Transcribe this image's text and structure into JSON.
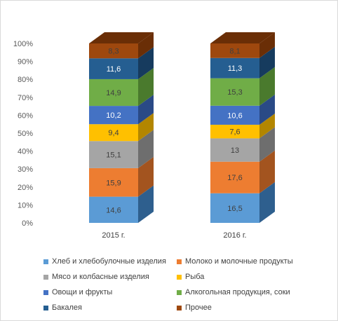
{
  "chart_data": {
    "type": "bar",
    "stacked": true,
    "three_d": true,
    "categories": [
      "2015 г.",
      "2016 г."
    ],
    "series": [
      {
        "name": "Хлеб и хлебобулочные изделия",
        "values": [
          14.6,
          16.5
        ],
        "color": "#5B9BD5",
        "side_color": "#2E5F8E",
        "label_color": "#404040"
      },
      {
        "name": "Молоко и молочные продукты",
        "values": [
          15.9,
          17.6
        ],
        "color": "#ED7D31",
        "side_color": "#A3541F",
        "label_color": "#404040"
      },
      {
        "name": "Мясо и колбасные изделия",
        "values": [
          15.1,
          13
        ],
        "color": "#A5A5A5",
        "side_color": "#6E6E6E",
        "label_color": "#404040"
      },
      {
        "name": "Рыба",
        "values": [
          9.4,
          7.6
        ],
        "color": "#FFC000",
        "side_color": "#B38600",
        "label_color": "#404040"
      },
      {
        "name": "Овощи и фрукты",
        "values": [
          10.2,
          10.6
        ],
        "color": "#4472C4",
        "side_color": "#2A4A86",
        "label_color": "#ffffff"
      },
      {
        "name": "Алкогольная продукция, соки",
        "values": [
          14.9,
          15.3
        ],
        "color": "#70AD47",
        "side_color": "#4A7A2D",
        "label_color": "#404040"
      },
      {
        "name": "Бакалея",
        "values": [
          11.6,
          11.3
        ],
        "color": "#255E91",
        "side_color": "#163B5E",
        "label_color": "#ffffff"
      },
      {
        "name": "Прочее",
        "values": [
          8.3,
          8.1
        ],
        "color": "#9E480E",
        "side_color": "#6A2E06",
        "label_color": "#404040"
      }
    ],
    "y_ticks": [
      "0%",
      "10%",
      "20%",
      "30%",
      "40%",
      "50%",
      "60%",
      "70%",
      "80%",
      "90%",
      "100%"
    ],
    "ylim": [
      0,
      100
    ],
    "grid": false,
    "legend_position": "bottom"
  }
}
